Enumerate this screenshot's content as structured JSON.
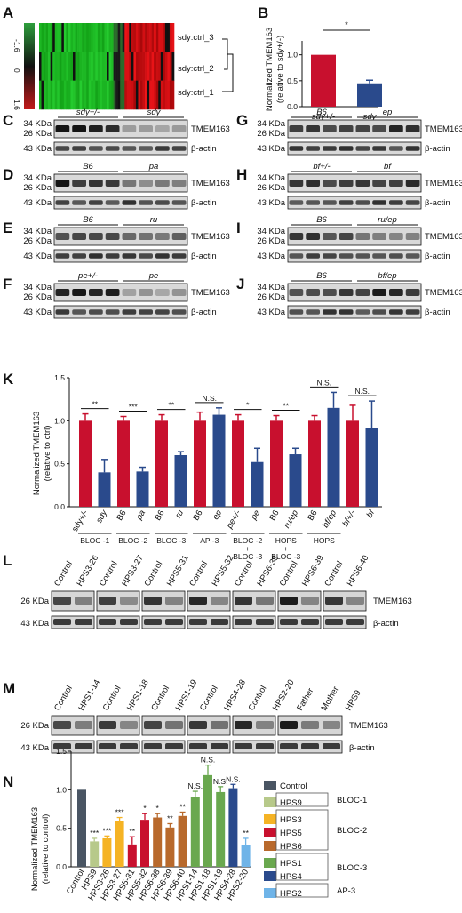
{
  "panels": {
    "A": {
      "label": "A",
      "rows": [
        "sdy:ctrl_3",
        "sdy:ctrl_2",
        "sdy:ctrl_1"
      ],
      "scale_ticks": [
        "-1.6",
        "0",
        "1.6"
      ]
    },
    "B": {
      "label": "B",
      "ylabel": "Normalized TMEM163\n(relative to sdy+/-)",
      "significance": "*",
      "chart_data": {
        "type": "bar",
        "categories": [
          "sdy+/-",
          "sdy"
        ],
        "values": [
          1.0,
          0.45
        ],
        "errors": [
          0.0,
          0.06
        ],
        "ylim": [
          0,
          1.2
        ],
        "yticks": [
          "0.0",
          "0.5",
          "1.0"
        ],
        "colors": [
          "#c8102e",
          "#2a4a8c"
        ]
      }
    },
    "blots": [
      {
        "label": "C",
        "groups": [
          "sdy+/-",
          "sdy"
        ],
        "kda_top": [
          "34 KDa",
          "26 KDa"
        ],
        "kda_bottom": "43 KDa",
        "protein": "TMEM163",
        "control": "β-actin"
      },
      {
        "label": "D",
        "groups": [
          "B6",
          "pa"
        ],
        "kda_top": [
          "34 KDa",
          "26 KDa"
        ],
        "kda_bottom": "43 KDa",
        "protein": "TMEM163",
        "control": "β-actin"
      },
      {
        "label": "E",
        "groups": [
          "B6",
          "ru"
        ],
        "kda_top": [
          "34 KDa",
          "26 KDa"
        ],
        "kda_bottom": "43 KDa",
        "protein": "TMEM163",
        "control": "β-actin"
      },
      {
        "label": "F",
        "groups": [
          "pe+/-",
          "pe"
        ],
        "kda_top": [
          "34 KDa",
          "26 KDa"
        ],
        "kda_bottom": "43 KDa",
        "protein": "TMEM163",
        "control": "β-actin"
      },
      {
        "label": "G",
        "groups": [
          "B6",
          "ep"
        ],
        "kda_top": [
          "34 KDa",
          "26 KDa"
        ],
        "kda_bottom": "43 KDa",
        "protein": "TMEM163",
        "control": "β-actin"
      },
      {
        "label": "H",
        "groups": [
          "bf+/-",
          "bf"
        ],
        "kda_top": [
          "34 KDa",
          "26 KDa"
        ],
        "kda_bottom": "43 KDa",
        "protein": "TMEM163",
        "control": "β-actin"
      },
      {
        "label": "I",
        "groups": [
          "B6",
          "ru/ep"
        ],
        "kda_top": [
          "34 KDa",
          "26 KDa"
        ],
        "kda_bottom": "43 KDa",
        "protein": "TMEM163",
        "control": "β-actin"
      },
      {
        "label": "J",
        "groups": [
          "B6",
          "bf/ep"
        ],
        "kda_top": [
          "34 KDa",
          "26 KDa"
        ],
        "kda_bottom": "43 KDa",
        "protein": "TMEM163",
        "control": "β-actin"
      }
    ],
    "K": {
      "label": "K",
      "ylabel": "Normalized TMEM163\n(relative to ctrl)",
      "chart_data": {
        "type": "bar",
        "categories": [
          "sdy+/-",
          "sdy",
          "B6",
          "pa",
          "B6",
          "ru",
          "B6",
          "ep",
          "pe+/-",
          "pe",
          "B6",
          "ru/ep",
          "B6",
          "bf/ep",
          "bf+/-",
          "bf"
        ],
        "values": [
          1.0,
          0.4,
          1.0,
          0.41,
          1.0,
          0.6,
          1.0,
          1.07,
          1.0,
          0.52,
          1.0,
          0.61,
          1.0,
          1.15,
          1.0,
          0.92
        ],
        "errors": [
          0.08,
          0.15,
          0.05,
          0.05,
          0.07,
          0.04,
          0.1,
          0.08,
          0.07,
          0.16,
          0.06,
          0.07,
          0.06,
          0.18,
          0.18,
          0.31
        ],
        "ylim": [
          0,
          1.5
        ],
        "yticks": [
          "0.0",
          "0.5",
          "1.0",
          "1.5"
        ],
        "colors": {
          "control": "#c8102e",
          "mutant": "#2a4a8c"
        },
        "significance": [
          "**",
          "***",
          "**",
          "N.S.",
          "*",
          "**",
          "N.S.",
          "N.S."
        ],
        "group_labels": [
          "BLOC -1",
          "BLOC -2",
          "BLOC -3",
          "AP -3",
          "BLOC -2\n+\nBLOC -3",
          "HOPS\n+\nBLOC -3",
          "HOPS"
        ]
      }
    },
    "L": {
      "label": "L",
      "lanes": [
        "Control",
        "HPS3-26",
        "Control",
        "HPS3-27",
        "Control",
        "HPS5-31",
        "Control",
        "HPS5-32",
        "Control",
        "HPS6-38",
        "Control",
        "HPS6-39",
        "Control",
        "HPS6-40"
      ],
      "kda_top": "26 KDa",
      "kda_bottom": "43 KDa",
      "protein": "TMEM163",
      "control": "β-actin"
    },
    "M": {
      "label": "M",
      "lanes": [
        "Control",
        "HPS1-14",
        "Control",
        "HPS1-18",
        "Control",
        "HPS1-19",
        "Control",
        "HPS4-28",
        "Control",
        "HPS2-20",
        "Father",
        "Mother",
        "HPS9"
      ],
      "kda_top": "26 KDa",
      "kda_bottom": "43 KDa",
      "protein": "TMEM163",
      "control": "β-actin"
    },
    "N": {
      "label": "N",
      "ylabel": "Normalized TMEM163\n(relative to control)",
      "chart_data": {
        "type": "bar",
        "categories": [
          "Control",
          "HPS9",
          "HPS3-26",
          "HPS3-27",
          "HPS5-31",
          "HPS5-32",
          "HPS6-38",
          "HPS6-39",
          "HPS6-40",
          "HPS1-14",
          "HPS1-18",
          "HPS1-19",
          "HPS4-28",
          "HPS2-20"
        ],
        "values": [
          1.0,
          0.33,
          0.37,
          0.59,
          0.29,
          0.61,
          0.64,
          0.51,
          0.66,
          0.9,
          1.19,
          0.97,
          1.02,
          0.28
        ],
        "errors": [
          0.0,
          0.04,
          0.03,
          0.05,
          0.1,
          0.08,
          0.05,
          0.05,
          0.05,
          0.08,
          0.13,
          0.07,
          0.05,
          0.09
        ],
        "colors": [
          "#4a5563",
          "#b7c98a",
          "#f5b324",
          "#f5b324",
          "#c8102e",
          "#c8102e",
          "#b8692c",
          "#b8692c",
          "#b8692c",
          "#6aa84f",
          "#6aa84f",
          "#6aa84f",
          "#2a4a8c",
          "#6fb4e8"
        ],
        "significance": [
          "",
          "***",
          "***",
          "***",
          "**",
          "*",
          "*",
          "**",
          "**",
          "N.S.",
          "N.S.",
          "N.S.",
          "N.S.",
          "**"
        ],
        "ylim": [
          0,
          1.5
        ],
        "yticks": [
          "0.0",
          "0.5",
          "1.0",
          "1.5"
        ],
        "legend": [
          {
            "name": "Control",
            "color": "#4a5563",
            "group": ""
          },
          {
            "name": "HPS9",
            "color": "#b7c98a",
            "group": "BLOC-1"
          },
          {
            "name": "HPS3",
            "color": "#f5b324",
            "group": "BLOC-2"
          },
          {
            "name": "HPS5",
            "color": "#c8102e",
            "group": ""
          },
          {
            "name": "HPS6",
            "color": "#b8692c",
            "group": ""
          },
          {
            "name": "HPS1",
            "color": "#6aa84f",
            "group": "BLOC-3"
          },
          {
            "name": "HPS4",
            "color": "#2a4a8c",
            "group": ""
          },
          {
            "name": "HPS2",
            "color": "#6fb4e8",
            "group": "AP-3"
          }
        ]
      }
    }
  }
}
